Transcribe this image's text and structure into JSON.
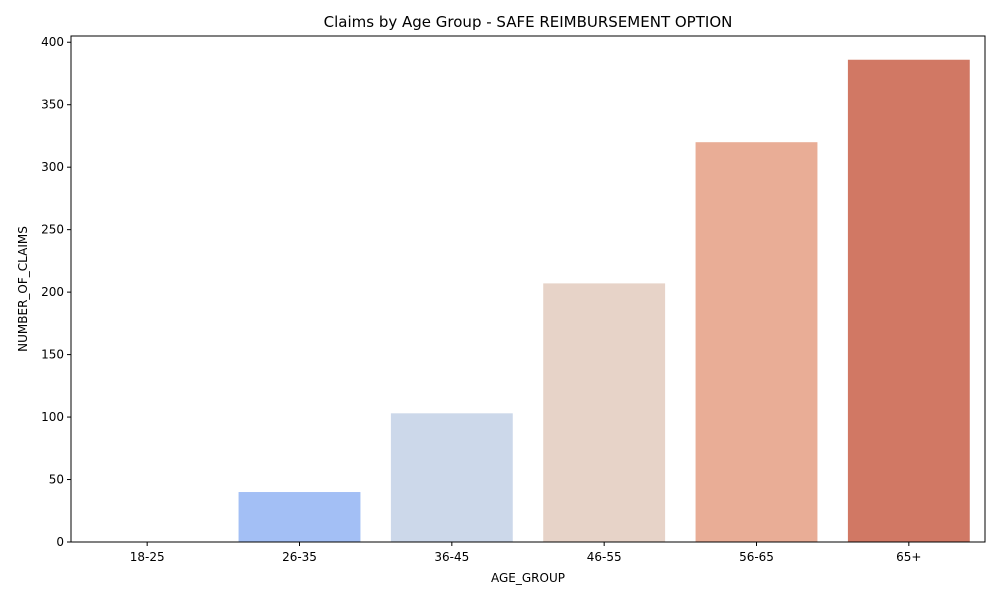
{
  "chart_data": {
    "type": "bar",
    "title": "Claims by Age Group - SAFE REIMBURSEMENT OPTION",
    "xlabel": "AGE_GROUP",
    "ylabel": "NUMBER_OF_CLAIMS",
    "categories": [
      "18-25",
      "26-35",
      "36-45",
      "46-55",
      "56-65",
      "65+"
    ],
    "values": [
      0,
      40,
      103,
      207,
      320,
      386
    ],
    "colors": [
      "#3b4cc0",
      "#a3bff5",
      "#ccd8ea",
      "#e7d3c8",
      "#e9ad96",
      "#d17864"
    ],
    "ylim": [
      0,
      400
    ],
    "yticks": [
      0,
      50,
      100,
      150,
      200,
      250,
      300,
      350,
      400
    ],
    "grid": false,
    "legend": "none"
  }
}
